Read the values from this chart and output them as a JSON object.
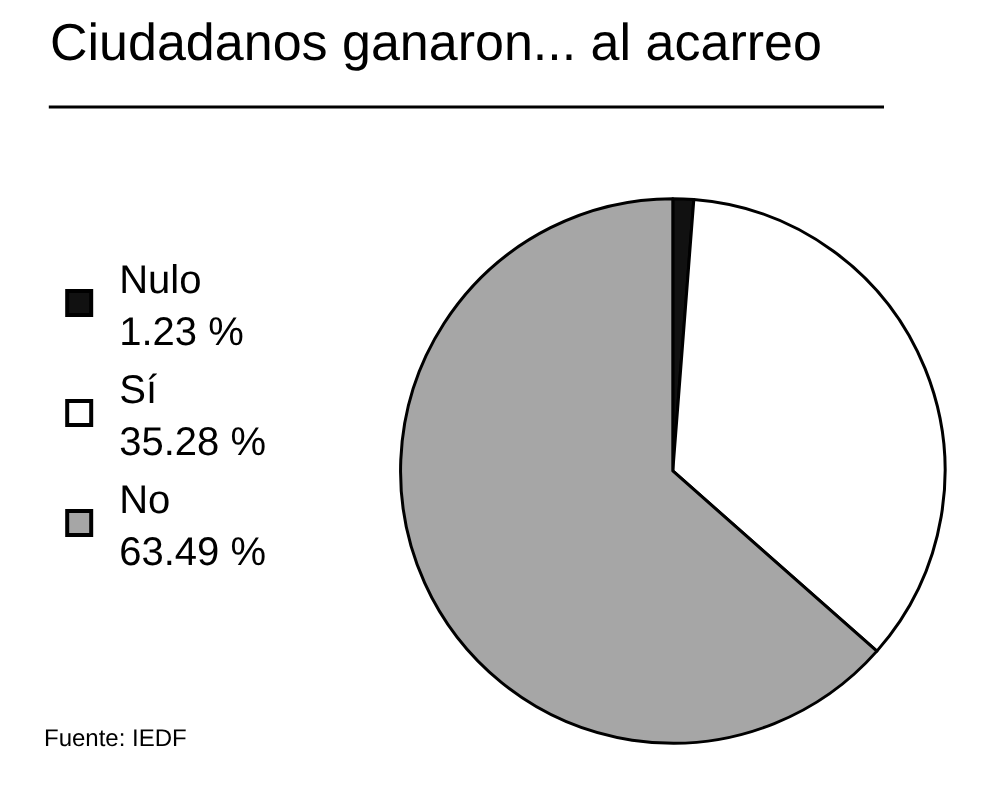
{
  "chart_data": {
    "type": "pie",
    "title": "Ciudadanos ganaron... al acarreo",
    "categories": [
      "Nulo",
      "Sí",
      "No"
    ],
    "values": [
      1.23,
      35.28,
      63.49
    ],
    "colors": [
      "#111111",
      "#ffffff",
      "#a6a6a6"
    ],
    "value_labels": [
      "1.23 %",
      "35.28 %",
      "63.49 %"
    ],
    "legend": "left",
    "annotations": [
      "Fuente: IEDF"
    ]
  }
}
